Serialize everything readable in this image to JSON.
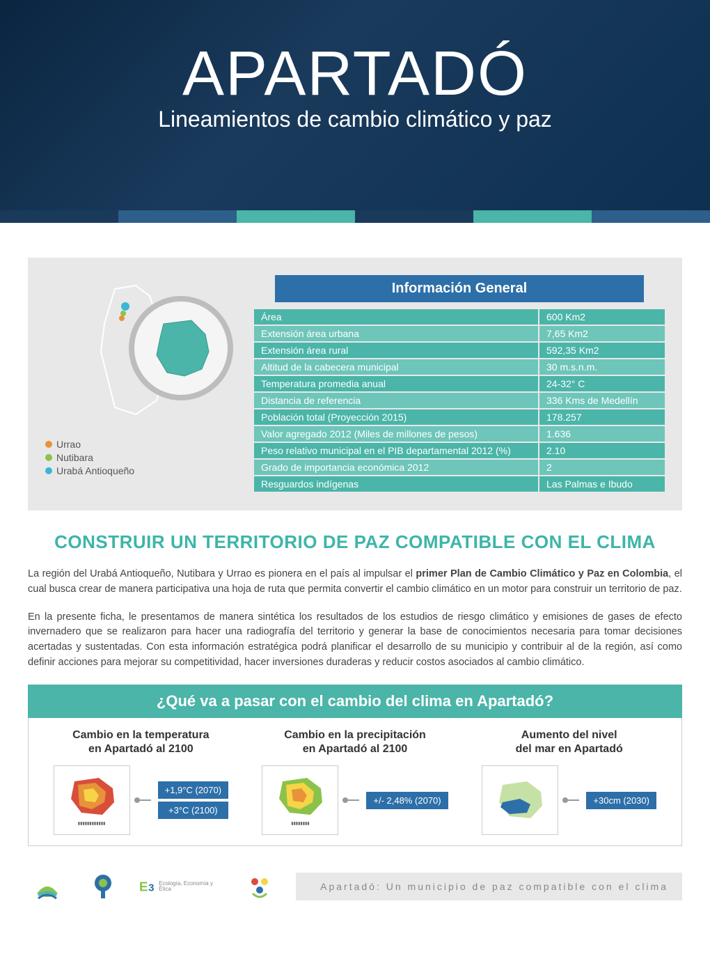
{
  "header": {
    "title": "APARTADÓ",
    "subtitle": "Lineamientos de cambio climático y paz"
  },
  "band_colors": [
    "#1a3a5c",
    "#2d5f8a",
    "#4ab5a8",
    "#1a3a5c",
    "#4ab5a8",
    "#2d5f8a"
  ],
  "info": {
    "title": "Información General",
    "rows": [
      {
        "label": "Área",
        "value": "600 Km2"
      },
      {
        "label": "Extensión área urbana",
        "value": "7,65 Km2"
      },
      {
        "label": "Extensión área rural",
        "value": "592,35 Km2"
      },
      {
        "label": "Altitud de la cabecera municipal",
        "value": "30 m.s.n.m."
      },
      {
        "label": "Temperatura promedia anual",
        "value": "24-32° C"
      },
      {
        "label": "Distancia de referencia",
        "value": "336 Kms de Medellín"
      },
      {
        "label": "Población total (Proyección 2015)",
        "value": "178.257"
      },
      {
        "label": "Valor agregado 2012 (Miles de millones de pesos)",
        "value": "1.636"
      },
      {
        "label": "Peso relativo municipal en el PIB departamental 2012 (%)",
        "value": "2.10"
      },
      {
        "label": "Grado de importancia económica 2012",
        "value": "2"
      },
      {
        "label": "Resguardos indígenas",
        "value": "Las Palmas e Ibudo"
      }
    ],
    "legend": [
      {
        "color": "#e8923a",
        "label": "Urrao"
      },
      {
        "color": "#8bc34a",
        "label": "Nutibara"
      },
      {
        "color": "#3db5d4",
        "label": "Urabá Antioqueño"
      }
    ]
  },
  "main_heading": "CONSTRUIR UN TERRITORIO DE PAZ COMPATIBLE CON EL CLIMA",
  "paragraphs": {
    "p1_pre": "La región del Urabá Antioqueño, Nutibara y Urrao es pionera en el país al impulsar el ",
    "p1_bold": "primer Plan de Cambio Climático y Paz en Colombia",
    "p1_post": ", el cual busca crear de manera participativa una hoja de ruta que permita convertir el cambio climático en un motor para construir un territorio de paz.",
    "p2": "En la presente ficha, le presentamos de manera sintética los resultados de los estudios de riesgo climático y emisiones de gases de efecto invernadero que se realizaron para hacer una radiografía del territorio y generar la base de conocimientos necesaria para tomar decisiones acertadas y sustentadas. Con esta información estratégica podrá planificar el desarrollo de su municipio y contribuir al de la región, así como definir acciones para mejorar su competitividad, hacer inversiones duraderas y reducir costos asociados al cambio climático."
  },
  "question": "¿Qué va a pasar con el cambio del clima en Apartadó?",
  "cards": [
    {
      "title_l1": "Cambio en la temperatura",
      "title_l2": "en Apartadó al 2100",
      "badges": [
        "+1,9°C (2070)",
        "+3°C (2100)"
      ],
      "map_colors": [
        "#d94e3a",
        "#e8923a",
        "#f5d547"
      ]
    },
    {
      "title_l1": "Cambio en la precipitación",
      "title_l2": "en Apartadó al 2100",
      "badges": [
        "+/- 2,48% (2070)"
      ],
      "map_colors": [
        "#8bc34a",
        "#f5d547",
        "#e8923a"
      ]
    },
    {
      "title_l1": "Aumento del nivel",
      "title_l2": "del mar en Apartadó",
      "badges": [
        "+30cm (2030)"
      ],
      "map_colors": [
        "#c5e1a5",
        "#2d6fa8"
      ]
    }
  ],
  "footer": {
    "logos": [
      "Urabá",
      "Corpourabá",
      "Ecología, Economía y Ética",
      "Cordupaz"
    ],
    "text": "Apartadó: Un municipio de paz compatible con el clima"
  },
  "colors": {
    "teal": "#4ab5a8",
    "teal_light": "#6ec5ba",
    "blue": "#2d6fa8",
    "heading": "#3db5a8",
    "grey_bg": "#e8e8e8"
  }
}
